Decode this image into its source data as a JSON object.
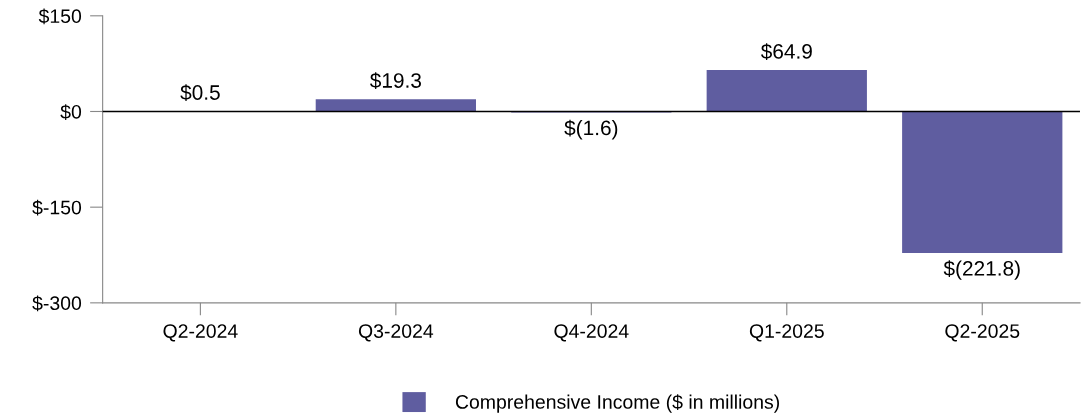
{
  "chart_data": {
    "type": "bar",
    "categories": [
      "Q2-2024",
      "Q3-2024",
      "Q4-2024",
      "Q1-2025",
      "Q2-2025"
    ],
    "series": [
      {
        "name": "Comprehensive Income ($ in millions)",
        "color": "#5f5da0",
        "values": [
          0.5,
          19.3,
          -1.6,
          64.9,
          -221.8
        ],
        "value_labels": [
          "$0.5",
          "$19.3",
          "$(1.6)",
          "$64.9",
          "$(221.8)"
        ]
      }
    ],
    "ylim": [
      -300,
      150
    ],
    "yticks": [
      {
        "value": 150,
        "label": "$150"
      },
      {
        "value": 0,
        "label": "$0"
      },
      {
        "value": -150,
        "label": "$-150"
      },
      {
        "value": -300,
        "label": "$-300"
      }
    ],
    "ref_lines": [
      {
        "axis": "y",
        "value": 0,
        "color": "#000000"
      }
    ],
    "grid": false,
    "legend": "bottom"
  }
}
